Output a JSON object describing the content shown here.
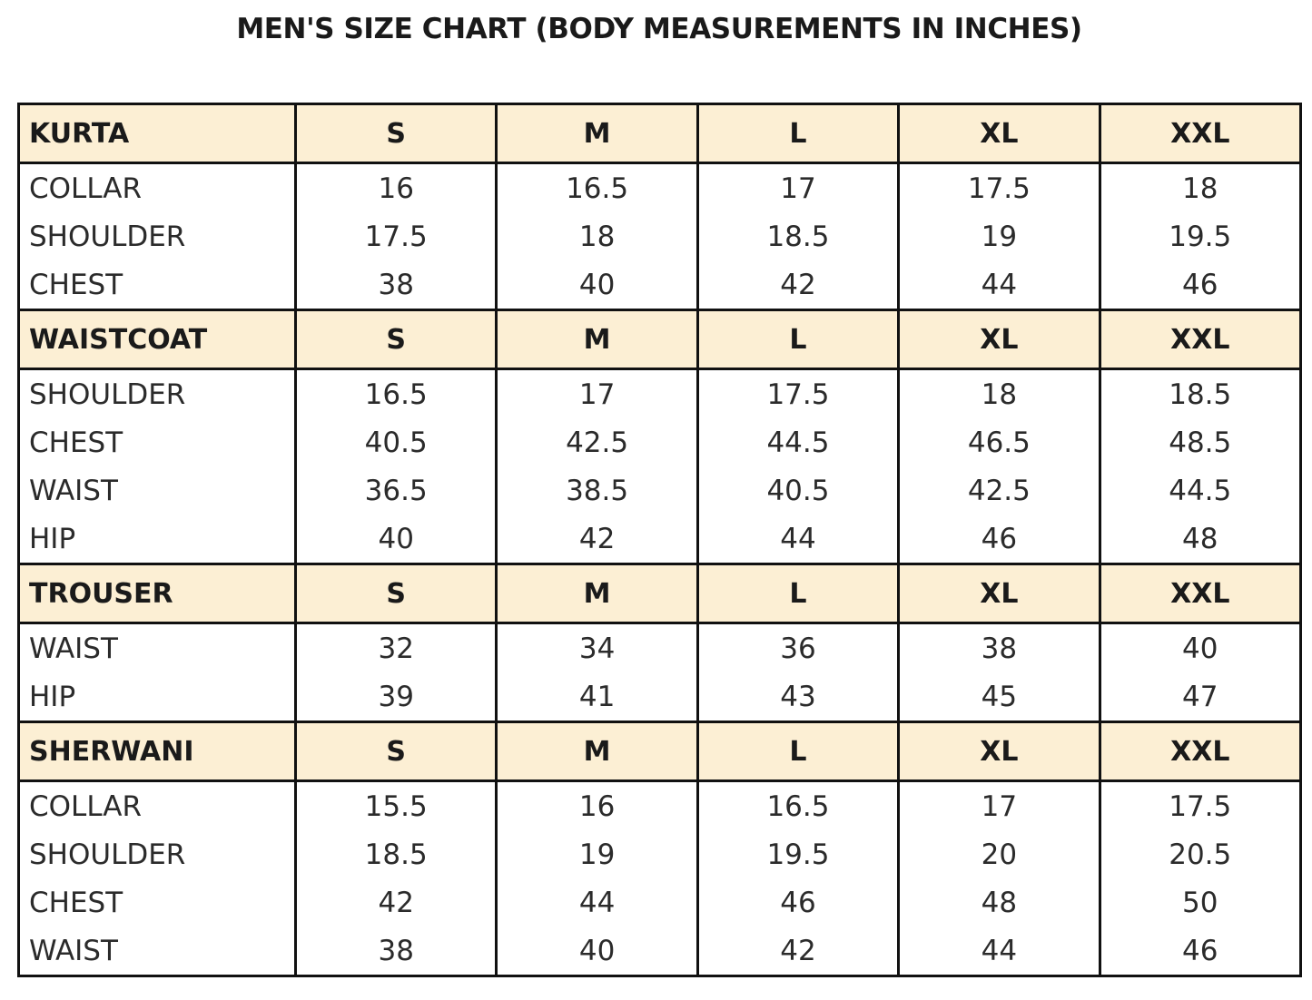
{
  "title": "MEN'S SIZE CHART (BODY MEASUREMENTS IN INCHES)",
  "colors": {
    "header_background": "#fcefd4",
    "border": "#111111"
  },
  "sizes": [
    "S",
    "M",
    "L",
    "XL",
    "XXL"
  ],
  "sections": [
    {
      "name": "KURTA",
      "rows": [
        {
          "label": "COLLAR",
          "values": [
            "16",
            "16.5",
            "17",
            "17.5",
            "18"
          ]
        },
        {
          "label": "SHOULDER",
          "values": [
            "17.5",
            "18",
            "18.5",
            "19",
            "19.5"
          ]
        },
        {
          "label": "CHEST",
          "values": [
            "38",
            "40",
            "42",
            "44",
            "46"
          ]
        }
      ]
    },
    {
      "name": "WAISTCOAT",
      "rows": [
        {
          "label": "SHOULDER",
          "values": [
            "16.5",
            "17",
            "17.5",
            "18",
            "18.5"
          ]
        },
        {
          "label": "CHEST",
          "values": [
            "40.5",
            "42.5",
            "44.5",
            "46.5",
            "48.5"
          ]
        },
        {
          "label": "WAIST",
          "values": [
            "36.5",
            "38.5",
            "40.5",
            "42.5",
            "44.5"
          ]
        },
        {
          "label": "HIP",
          "values": [
            "40",
            "42",
            "44",
            "46",
            "48"
          ]
        }
      ]
    },
    {
      "name": "TROUSER",
      "rows": [
        {
          "label": "WAIST",
          "values": [
            "32",
            "34",
            "36",
            "38",
            "40"
          ]
        },
        {
          "label": "HIP",
          "values": [
            "39",
            "41",
            "43",
            "45",
            "47"
          ]
        }
      ]
    },
    {
      "name": "SHERWANI",
      "rows": [
        {
          "label": "COLLAR",
          "values": [
            "15.5",
            "16",
            "16.5",
            "17",
            "17.5"
          ]
        },
        {
          "label": "SHOULDER",
          "values": [
            "18.5",
            "19",
            "19.5",
            "20",
            "20.5"
          ]
        },
        {
          "label": "CHEST",
          "values": [
            "42",
            "44",
            "46",
            "48",
            "50"
          ]
        },
        {
          "label": "WAIST",
          "values": [
            "38",
            "40",
            "42",
            "44",
            "46"
          ]
        }
      ]
    }
  ]
}
